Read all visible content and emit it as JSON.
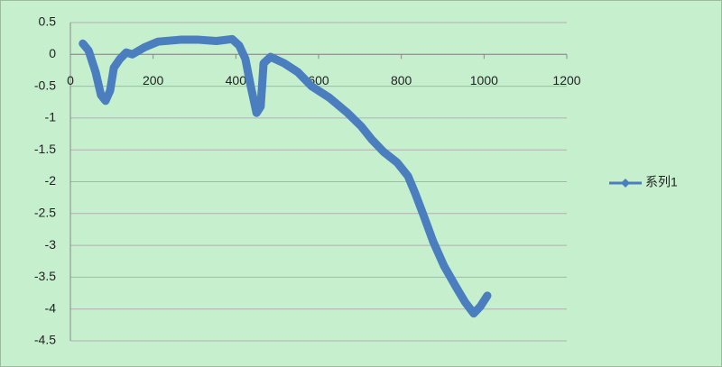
{
  "chart_data": {
    "type": "scatter-line",
    "x": [
      30,
      44,
      61,
      74,
      85,
      96,
      105,
      120,
      135,
      150,
      179,
      212,
      266,
      310,
      353,
      391,
      408,
      423,
      436,
      450,
      460,
      467,
      484,
      517,
      550,
      583,
      626,
      670,
      703,
      729,
      757,
      790,
      816,
      834,
      855,
      877,
      903,
      932,
      954,
      975,
      991,
      1008
    ],
    "series": [
      {
        "name": "系列1",
        "color": "#4a7ebf",
        "values": [
          0.17,
          0.06,
          -0.28,
          -0.64,
          -0.73,
          -0.57,
          -0.21,
          -0.07,
          0.03,
          0,
          0.11,
          0.2,
          0.23,
          0.23,
          0.21,
          0.24,
          0.14,
          -0.07,
          -0.5,
          -0.92,
          -0.82,
          -0.14,
          -0.04,
          -0.14,
          -0.28,
          -0.5,
          -0.68,
          -0.92,
          -1.13,
          -1.34,
          -1.53,
          -1.7,
          -1.91,
          -2.19,
          -2.55,
          -2.94,
          -3.32,
          -3.65,
          -3.89,
          -4.07,
          -3.96,
          -3.79
        ]
      }
    ],
    "xlim": [
      0,
      1200
    ],
    "xticks": [
      0,
      200,
      400,
      600,
      800,
      1000,
      1200
    ],
    "ylim": [
      -4.5,
      0.5
    ],
    "yticks": [
      0.5,
      0,
      -0.5,
      -1,
      -1.5,
      -2,
      -2.5,
      -3,
      -3.5,
      -4,
      -4.5
    ],
    "grid": true,
    "legend": "right"
  }
}
